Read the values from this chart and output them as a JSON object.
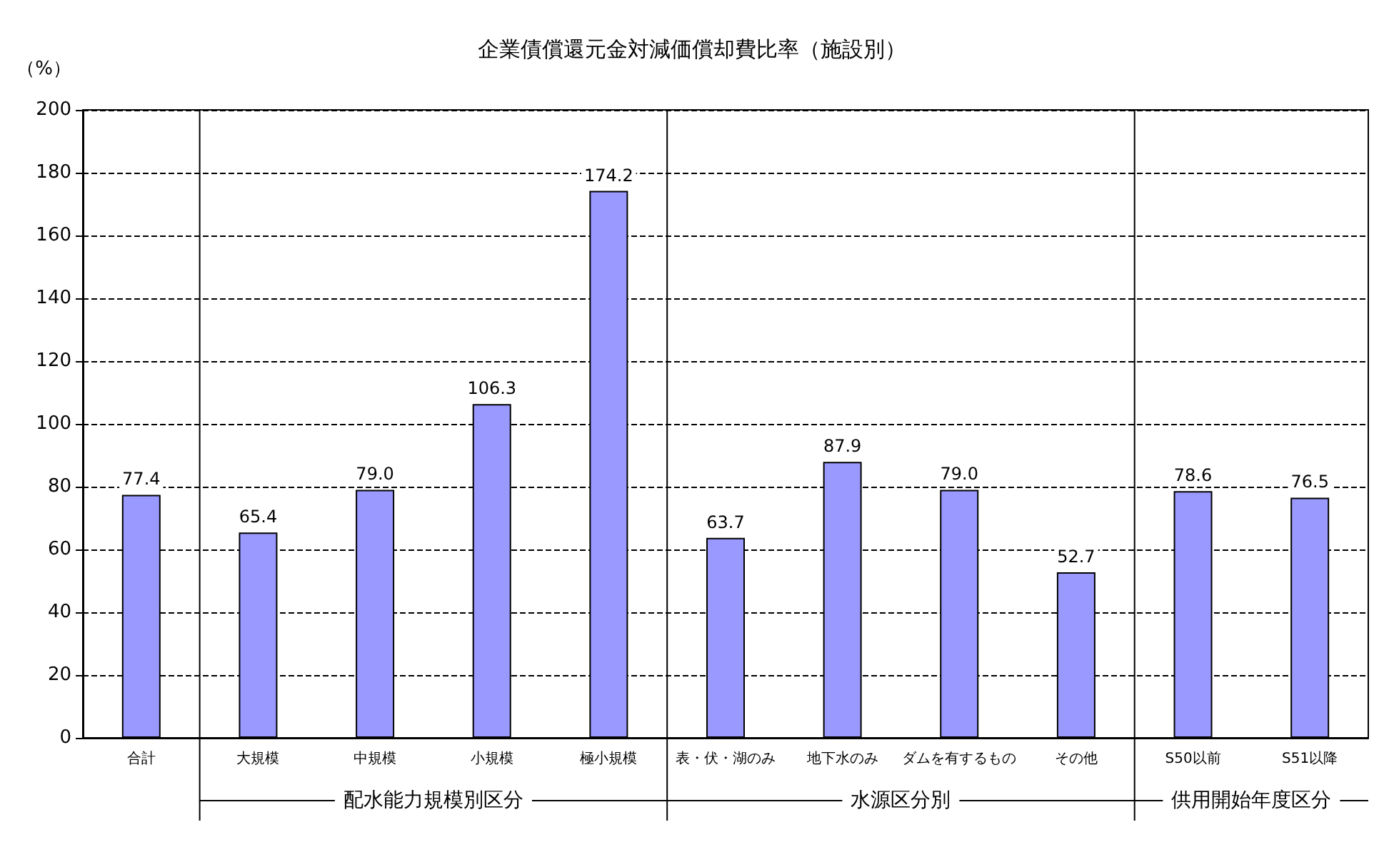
{
  "chart_data": {
    "type": "bar",
    "title": "企業債償還元金対減価償却費比率（施設別）",
    "ylabel": "（%）",
    "categories": [
      "合計",
      "大規模",
      "中規模",
      "小規模",
      "極小規模",
      "表・伏・湖のみ",
      "地下水のみ",
      "ダムを有するもの",
      "その他",
      "S50以前",
      "S51以降"
    ],
    "values": [
      77.4,
      65.4,
      79.0,
      106.3,
      174.2,
      63.7,
      87.9,
      79.0,
      52.7,
      78.6,
      76.5
    ],
    "value_labels": [
      "77.4",
      "65.4",
      "79.0",
      "106.3",
      "174.2",
      "63.7",
      "87.9",
      "79.0",
      "52.7",
      "78.6",
      "76.5"
    ],
    "color": "#9999ff",
    "ylim": [
      0,
      200
    ],
    "yticks": [
      0,
      20,
      40,
      60,
      80,
      100,
      120,
      140,
      160,
      180,
      200
    ],
    "grid": "y",
    "annotations": [
      "配水能力規模別区分",
      "水源区分別",
      "供用開始年度区分"
    ]
  }
}
